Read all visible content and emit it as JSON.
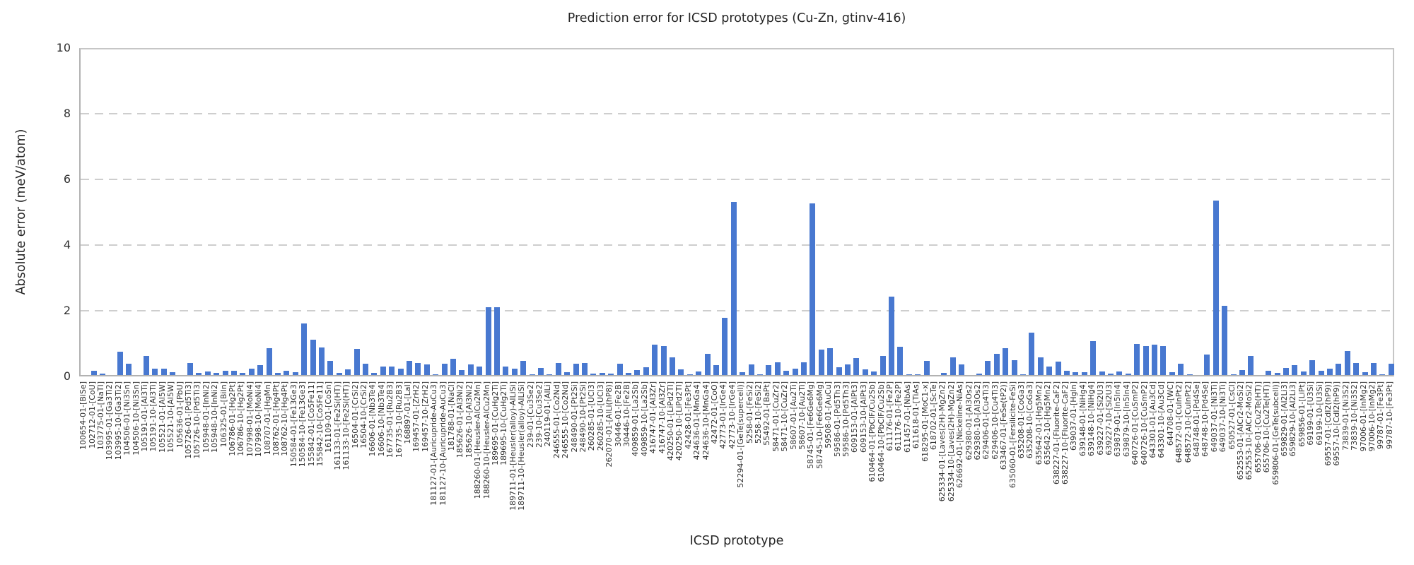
{
  "chart_data": {
    "type": "bar",
    "title": "Prediction error for ICSD prototypes (Cu-Zn, gtinv-416)",
    "xlabel": "ICSD prototype",
    "ylabel": "Absolute error (meV/atom)",
    "ylim": [
      0,
      10
    ],
    "yticks": [
      0,
      2,
      4,
      6,
      8,
      10
    ],
    "grid": "horizontal dashed gridlines at y ticks",
    "legend_position": "none",
    "bar_color": "#4878d0",
    "categories": [
      "100654-01-[BiSe]",
      "102712-01-[CoU]",
      "103775-01-[NaTl]",
      "103995-01-[Ga3Ti2]",
      "103995-10-[Ga3Ti2]",
      "104506-01-[Ni3Sn]",
      "104506-10-[Ni3Sn]",
      "105191-01-[Al3Ti]",
      "105191-10-[Al3Ti]",
      "105521-01-[Al5W]",
      "105521-10-[Al5W]",
      "105636-01-[PbU]",
      "105726-01-[Pd5Ti3]",
      "105726-10-[Pd5Ti3]",
      "105948-01-[InNi2]",
      "105948-10-[InNi2]",
      "106325-01-[BiIn]",
      "106786-01-[Hg2Pt]",
      "106786-10-[Hg2Pt]",
      "107998-01-[MoNi4]",
      "107998-10-[MoNi4]",
      "108707-01-[HgMn]",
      "108762-01-[Hg4Pt]",
      "108762-10-[Hg4Pt]",
      "150584-01-[Fe13Ge3]",
      "150584-10-[Fe13Ge3]",
      "155842-01-[Co5Fe11]",
      "155842-10-[Co5Fe11]",
      "161109-01-[CoSn]",
      "161133-01-[Fe2Si(HT)]",
      "161133-10-[Fe2Si(HT)]",
      "16504-01-[CrSi2]",
      "16504-10-[CrSi2]",
      "16606-01-[Nb3Te4]",
      "16606-10-[Nb3Te4]",
      "167735-01-[Ru2B3]",
      "167735-10-[Ru2B3]",
      "168897-01-[LaI]",
      "169457-01-[ZrH2]",
      "169457-10-[ZrH2]",
      "181127-01-[Auricupride-AuCu3]",
      "181127-10-[Auricupride-AuCu3]",
      "181788-01-[NaCl]",
      "185626-01-[Al3Ni2]",
      "185626-10-[Al3Ni2]",
      "188260-01-[Heusler-AlCu2Mn]",
      "188260-10-[Heusler-AlCu2Mn]",
      "189695-01-[CuHg2Ti]",
      "189695-10-[CuHg2Ti]",
      "189711-01-[Heusler(alloy)-AlLiSi]",
      "189711-10-[Heusler(alloy)-AlLiSi]",
      "239-01-[Cu3Se2]",
      "239-10-[Cu3Se2]",
      "240119-01-[AlLi]",
      "246555-01-[Co2Nd]",
      "246555-10-[Co2Nd]",
      "248490-01-[Pt2Si]",
      "248490-10-[Pt2Si]",
      "260285-01-[UCl3]",
      "260285-10-[UCl3]",
      "262070-01-[AlLi(hP8)]",
      "30446-01-[Fe2B]",
      "30446-10-[Fe2B]",
      "409859-01-[La2Sb]",
      "409859-10-[La2Sb]",
      "416747-01-[Al3Zr]",
      "416747-10-[Al3Zr]",
      "420250-01-[LiPd2Tl]",
      "420250-10-[LiPd2Tl]",
      "42428-01-[Fe3Pt]",
      "424636-01-[MnGa4]",
      "424636-10-[MnGa4]",
      "42472-01-[CoO]",
      "42773-01-[IrGe4]",
      "42773-10-[IrGe4]",
      "52294-01-[GeTe(supercell)]",
      "5258-01-[FeSi2]",
      "5258-10-[FeSi2]",
      "55492-01-[BaPt]",
      "58471-01-[CuZr2]",
      "58471-10-[CuZr2]",
      "58607-01-[Au2Ti]",
      "58607-10-[Au2Ti]",
      "58745-01-[Fe6Ge6Mg]",
      "58745-10-[Fe6Ge6Mg]",
      "59508-01-[AuCu]",
      "59586-01-[Pd5Th3]",
      "59586-10-[Pd5Th3]",
      "609153-01-[AlPt3]",
      "609153-10-[AlPt3]",
      "610464-01-[PbClF/Cu2Sb]",
      "610464-10-[PbClF/Cu2Sb]",
      "611176-01-[Fe2P]",
      "611176-10-[Fe2P]",
      "611457-01-[NbAs]",
      "611618-01-[TiAs]",
      "618295-01-[MoC1-x]",
      "618702-01-[ScTe]",
      "625334-01-[Laves(2H)-MgZn2]",
      "625334-10-[Laves(2H)-MgZn2]",
      "626692-01-[Nickeline-NiAs]",
      "629380-01-[Al3Os2]",
      "629380-10-[Al3Os2]",
      "629406-01-[Cu4Ti3]",
      "629406-10-[Cu4Ti3]",
      "633467-01-[FeSe(tP2)]",
      "635060-01-[Fersilicite-FeSi]",
      "635208-01-[CoGa3]",
      "635208-10-[CoGa3]",
      "635642-01-[Hg5Mn2]",
      "635642-10-[Hg5Mn2]",
      "638227-01-[Fluorite-CaF2]",
      "638227-10-[Fluorite-CaF2]",
      "639037-01-[HgIn]",
      "639148-01-[NiHg4]",
      "639148-10-[NiHg4]",
      "639227-01-[Si2U3]",
      "639227-10-[Si2U3]",
      "639879-01-[In5In4]",
      "639879-10-[In5In4]",
      "640726-01-[CuSmP2]",
      "640726-10-[CuSmP2]",
      "643301-01-[Au3Cd]",
      "643301-10-[Au3Cd]",
      "644708-01-[WC]",
      "648572-01-[CuInPt2]",
      "648572-10-[CuInPt2]",
      "648748-01-[Pd4Se]",
      "648748-10-[Pd4Se]",
      "649037-01-[Ni3Ti]",
      "649037-10-[Ni3Ti]",
      "650527-01-[CsCl]",
      "652553-01-[AlCr2-MoSi2]",
      "652553-10-[AlCr2-MoSi2]",
      "655706-01-[Cu2Te(HT)]",
      "655706-10-[Cu2Te(HT)]",
      "659806-01-[GeTe(subcell)]",
      "659829-01-[Al2Li3]",
      "659829-10-[Al2Li3]",
      "659856-01-[LiPt]",
      "69199-01-[U3Si]",
      "69199-10-[U3Si]",
      "69557-01-[CdI2(hP9)]",
      "69557-10-[CdI2(hP9)]",
      "73839-01-[Ni3S2]",
      "73839-10-[Ni3S2]",
      "97006-01-[InMg2]",
      "97006-10-[InMg2]",
      "99787-01-[Fe3Pt]",
      "99787-10-[Fe3Pt]"
    ],
    "values": [
      0,
      0.12,
      0.05,
      0,
      0.7,
      0.34,
      0,
      0.58,
      0.19,
      0.19,
      0.09,
      0,
      0.37,
      0.07,
      0.1,
      0.06,
      0.14,
      0.13,
      0.06,
      0.2,
      0.3,
      0.82,
      0.06,
      0.13,
      0.09,
      1.58,
      1.08,
      0.83,
      0.43,
      0.07,
      0.18,
      0.79,
      0.34,
      0.07,
      0.25,
      0.25,
      0.2,
      0.42,
      0.36,
      0.33,
      0.02,
      0.34,
      0.5,
      0.16,
      0.32,
      0.26,
      2.07,
      2.07,
      0.26,
      0.2,
      0.42,
      0.02,
      0.21,
      0.03,
      0.37,
      0.09,
      0.35,
      0.36,
      0.05,
      0.06,
      0.05,
      0.35,
      0.06,
      0.15,
      0.24,
      0.92,
      0.88,
      0.54,
      0.17,
      0.02,
      0.1,
      0.65,
      0.31,
      1.74,
      5.26,
      0.08,
      0.33,
      0.02,
      0.3,
      0.39,
      0.14,
      0.19,
      0.38,
      5.22,
      0.77,
      0.82,
      0.23,
      0.32,
      0.51,
      0.17,
      0.11,
      0.58,
      2.39,
      0.87,
      0.02,
      0.02,
      0.44,
      0,
      0.06,
      0.54,
      0.33,
      0,
      0.04,
      0.44,
      0.65,
      0.81,
      0.45,
      0.03,
      1.3,
      0.54,
      0.26,
      0.41,
      0.13,
      0.09,
      0.09,
      1.04,
      0.1,
      0.05,
      0.11,
      0.04,
      0.94,
      0.89,
      0.92,
      0.89,
      0.09,
      0.34,
      0.02,
      0,
      0.62,
      5.32,
      2.1,
      0.02,
      0.16,
      0.59,
      0,
      0.14,
      0.06,
      0.21,
      0.31,
      0.1,
      0.46,
      0.14,
      0.19,
      0.34,
      0.74,
      0.36,
      0.09,
      0.36,
      0.02,
      0.34
    ]
  }
}
